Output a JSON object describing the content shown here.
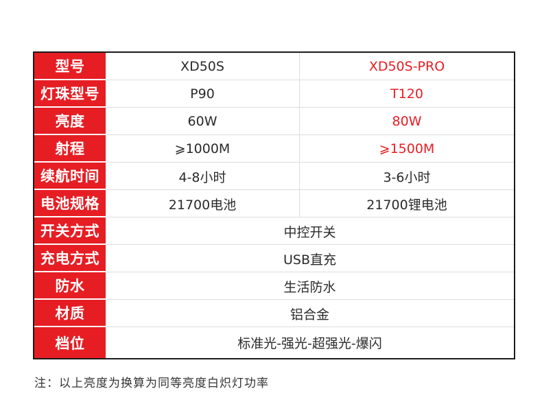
{
  "colors": {
    "label_bg": "#e61e24",
    "label_text": "#ffffff",
    "pro_highlight": "#e61e24",
    "body_text": "#2a2a2a",
    "border": "#1a1a1a"
  },
  "table": {
    "rows": [
      {
        "label": "型号",
        "std": "XD50S",
        "pro": "XD50S-PRO"
      },
      {
        "label": "灯珠型号",
        "std": "P90",
        "pro": "T120"
      },
      {
        "label": "亮度",
        "std": "60W",
        "pro": "80W"
      },
      {
        "label": "射程",
        "std": "⩾1000M",
        "pro": "⩾1500M"
      },
      {
        "label": "续航时间",
        "std": "4-8小时",
        "pro": "3-6小时"
      },
      {
        "label": "电池规格",
        "std": "21700电池",
        "pro": "21700锂电池"
      },
      {
        "label": "开关方式",
        "value": "中控开关"
      },
      {
        "label": "充电方式",
        "value": "USB直充"
      },
      {
        "label": "防水",
        "value": "生活防水"
      },
      {
        "label": "材质",
        "value": "铝合金"
      },
      {
        "label": "档位",
        "value": "标准光-强光-超强光-爆闪"
      }
    ]
  },
  "note": "注：以上亮度为换算为同等亮度白炽灯功率"
}
